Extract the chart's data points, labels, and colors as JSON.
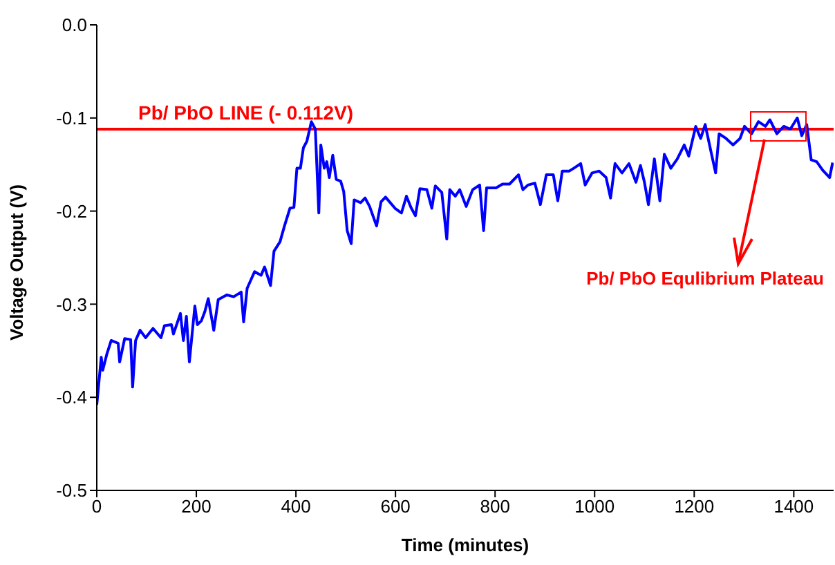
{
  "chart_data": {
    "type": "line",
    "xlabel": "Time (minutes)",
    "ylabel": "Voltage Output (V)",
    "xlim": [
      0,
      1480
    ],
    "xticks": [
      0,
      200,
      400,
      600,
      800,
      1000,
      1200,
      1400
    ],
    "ylim": [
      -0.5,
      0
    ],
    "yticks": [
      -0.5,
      -0.4,
      -0.3,
      -0.2,
      -0.1,
      {
        "value": 0,
        "label": "0.0"
      }
    ],
    "grid": false,
    "legend": false,
    "marker": "none",
    "line_style": "solid",
    "ref_lines": [
      {
        "axis": "y",
        "value": -0.112,
        "label": "Pb/ PbO LINE (- 0.112V)",
        "color": "#ff0000",
        "line_style": "solid"
      }
    ],
    "annotations": [
      "Pb/ PbO Equlibrium Plateau"
    ],
    "series": [
      {
        "color": "#0000ff",
        "x": [
          0,
          9,
          12,
          20,
          29,
          43,
          46,
          56,
          68,
          72,
          78,
          87,
          98,
          113,
          129,
          136,
          150,
          154,
          168,
          174,
          180,
          186,
          197,
          202,
          210,
          217,
          224,
          235,
          244,
          261,
          275,
          290,
          295,
          302,
          317,
          330,
          337,
          349,
          356,
          368,
          377,
          388,
          396,
          402,
          409,
          415,
          422,
          431,
          439,
          446,
          450,
          457,
          462,
          467,
          474,
          481,
          490,
          496,
          503,
          511,
          517,
          530,
          539,
          548,
          562,
          571,
          580,
          599,
          612,
          622,
          631,
          640,
          649,
          663,
          673,
          680,
          693,
          703,
          709,
          720,
          729,
          742,
          755,
          769,
          777,
          783,
          802,
          815,
          829,
          847,
          856,
          866,
          880,
          891,
          903,
          917,
          926,
          935,
          949,
          958,
          972,
          981,
          995,
          1009,
          1023,
          1032,
          1041,
          1055,
          1069,
          1083,
          1092,
          1100,
          1108,
          1120,
          1131,
          1140,
          1153,
          1166,
          1180,
          1189,
          1203,
          1213,
          1222,
          1234,
          1243,
          1250,
          1264,
          1278,
          1292,
          1301,
          1315,
          1329,
          1343,
          1352,
          1366,
          1380,
          1393,
          1407,
          1416,
          1426,
          1435,
          1446,
          1458,
          1472,
          1478
        ],
        "values": [
          -0.408,
          -0.357,
          -0.371,
          -0.354,
          -0.339,
          -0.342,
          -0.362,
          -0.337,
          -0.338,
          -0.389,
          -0.339,
          -0.328,
          -0.336,
          -0.326,
          -0.336,
          -0.323,
          -0.322,
          -0.332,
          -0.31,
          -0.339,
          -0.313,
          -0.362,
          -0.302,
          -0.322,
          -0.318,
          -0.308,
          -0.294,
          -0.328,
          -0.295,
          -0.29,
          -0.292,
          -0.287,
          -0.319,
          -0.283,
          -0.265,
          -0.269,
          -0.26,
          -0.28,
          -0.243,
          -0.233,
          -0.216,
          -0.197,
          -0.196,
          -0.154,
          -0.154,
          -0.132,
          -0.125,
          -0.104,
          -0.112,
          -0.202,
          -0.129,
          -0.154,
          -0.147,
          -0.164,
          -0.14,
          -0.166,
          -0.168,
          -0.179,
          -0.221,
          -0.235,
          -0.188,
          -0.191,
          -0.186,
          -0.195,
          -0.216,
          -0.19,
          -0.185,
          -0.197,
          -0.202,
          -0.184,
          -0.196,
          -0.205,
          -0.176,
          -0.177,
          -0.197,
          -0.173,
          -0.18,
          -0.23,
          -0.177,
          -0.184,
          -0.177,
          -0.195,
          -0.177,
          -0.172,
          -0.221,
          -0.175,
          -0.175,
          -0.171,
          -0.171,
          -0.161,
          -0.177,
          -0.172,
          -0.17,
          -0.193,
          -0.161,
          -0.161,
          -0.189,
          -0.157,
          -0.157,
          -0.154,
          -0.149,
          -0.172,
          -0.159,
          -0.157,
          -0.164,
          -0.186,
          -0.149,
          -0.159,
          -0.149,
          -0.169,
          -0.151,
          -0.169,
          -0.193,
          -0.144,
          -0.189,
          -0.139,
          -0.154,
          -0.144,
          -0.129,
          -0.141,
          -0.109,
          -0.122,
          -0.107,
          -0.137,
          -0.159,
          -0.117,
          -0.122,
          -0.129,
          -0.122,
          -0.109,
          -0.117,
          -0.104,
          -0.109,
          -0.102,
          -0.117,
          -0.109,
          -0.112,
          -0.1,
          -0.119,
          -0.107,
          -0.145,
          -0.147,
          -0.156,
          -0.164,
          -0.148
        ]
      }
    ]
  }
}
